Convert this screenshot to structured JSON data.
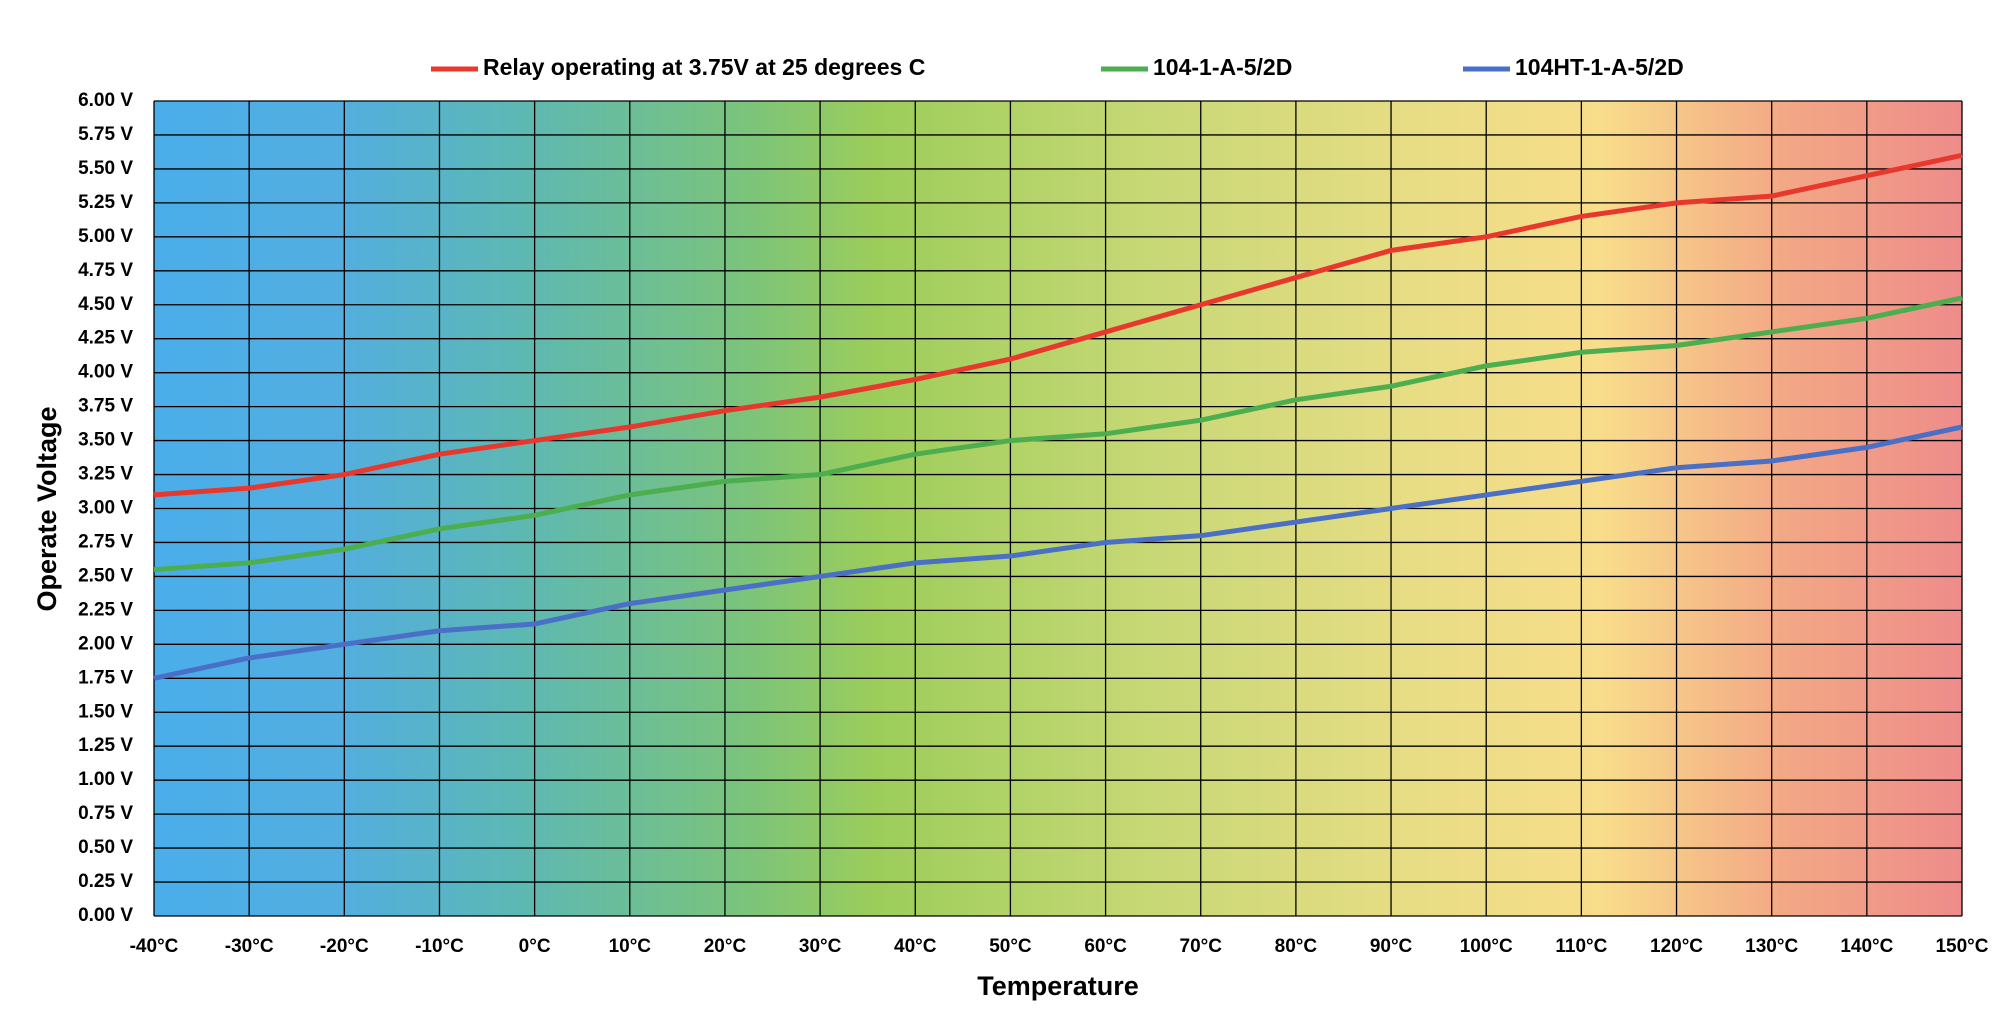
{
  "chart_data": {
    "type": "line",
    "x_label": "Temperature",
    "y_label": "Operate Voltage",
    "x": [
      -40,
      -30,
      -20,
      -10,
      0,
      10,
      20,
      30,
      40,
      50,
      60,
      70,
      80,
      90,
      100,
      110,
      120,
      130,
      140,
      150
    ],
    "series": [
      {
        "name": "Relay operating at 3.75V at 25 degrees C",
        "color": "#e8382e",
        "values": [
          3.1,
          3.15,
          3.25,
          3.4,
          3.5,
          3.6,
          3.72,
          3.82,
          3.95,
          4.1,
          4.3,
          4.5,
          4.7,
          4.9,
          5.0,
          5.15,
          5.25,
          5.3,
          5.45,
          5.6
        ]
      },
      {
        "name": "104-1-A-5/2D",
        "color": "#4cae4f",
        "values": [
          2.55,
          2.6,
          2.7,
          2.85,
          2.95,
          3.1,
          3.2,
          3.25,
          3.4,
          3.5,
          3.55,
          3.65,
          3.8,
          3.9,
          4.05,
          4.15,
          4.2,
          4.3,
          4.4,
          4.55
        ]
      },
      {
        "name": "104HT-1-A-5/2D",
        "color": "#4a6fc7",
        "values": [
          1.75,
          1.9,
          2.0,
          2.1,
          2.15,
          2.3,
          2.4,
          2.5,
          2.6,
          2.65,
          2.75,
          2.8,
          2.9,
          3.0,
          3.1,
          3.2,
          3.3,
          3.35,
          3.45,
          3.6
        ]
      }
    ],
    "xlim": [
      -40,
      150
    ],
    "xticks": [
      {
        "value": -40,
        "label": "-40°C"
      },
      {
        "value": -30,
        "label": "-30°C"
      },
      {
        "value": -20,
        "label": "-20°C"
      },
      {
        "value": -10,
        "label": "-10°C"
      },
      {
        "value": 0,
        "label": "0°C"
      },
      {
        "value": 10,
        "label": "10°C"
      },
      {
        "value": 20,
        "label": "20°C"
      },
      {
        "value": 30,
        "label": "30°C"
      },
      {
        "value": 40,
        "label": "40°C"
      },
      {
        "value": 50,
        "label": "50°C"
      },
      {
        "value": 60,
        "label": "60°C"
      },
      {
        "value": 70,
        "label": "70°C"
      },
      {
        "value": 80,
        "label": "80°C"
      },
      {
        "value": 90,
        "label": "90°C"
      },
      {
        "value": 100,
        "label": "100°C"
      },
      {
        "value": 110,
        "label": "110°C"
      },
      {
        "value": 120,
        "label": "120°C"
      },
      {
        "value": 130,
        "label": "130°C"
      },
      {
        "value": 140,
        "label": "140°C"
      },
      {
        "value": 150,
        "label": "150°C"
      }
    ],
    "ylim": [
      0,
      6
    ],
    "yticks": [
      {
        "value": 0,
        "label": "0.00 V"
      },
      {
        "value": 0.25,
        "label": "0.25 V"
      },
      {
        "value": 0.5,
        "label": "0.50 V"
      },
      {
        "value": 0.75,
        "label": "0.75 V"
      },
      {
        "value": 1,
        "label": "1.00 V"
      },
      {
        "value": 1.25,
        "label": "1.25 V"
      },
      {
        "value": 1.5,
        "label": "1.50 V"
      },
      {
        "value": 1.75,
        "label": "1.75 V"
      },
      {
        "value": 2,
        "label": "2.00 V"
      },
      {
        "value": 2.25,
        "label": "2.25 V"
      },
      {
        "value": 2.5,
        "label": "2.50 V"
      },
      {
        "value": 2.75,
        "label": "2.75 V"
      },
      {
        "value": 3,
        "label": "3.00 V"
      },
      {
        "value": 3.25,
        "label": "3.25 V"
      },
      {
        "value": 3.5,
        "label": "3.50 V"
      },
      {
        "value": 3.75,
        "label": "3.75 V"
      },
      {
        "value": 4,
        "label": "4.00 V"
      },
      {
        "value": 4.25,
        "label": "4.25 V"
      },
      {
        "value": 4.5,
        "label": "4.50 V"
      },
      {
        "value": 4.75,
        "label": "4.75 V"
      },
      {
        "value": 5,
        "label": "5.00 V"
      },
      {
        "value": 5.25,
        "label": "5.25 V"
      },
      {
        "value": 5.5,
        "label": "5.50 V"
      },
      {
        "value": 5.75,
        "label": "5.75 V"
      },
      {
        "value": 6,
        "label": "6.00 V"
      }
    ],
    "grid": true,
    "legend_position": "top"
  }
}
